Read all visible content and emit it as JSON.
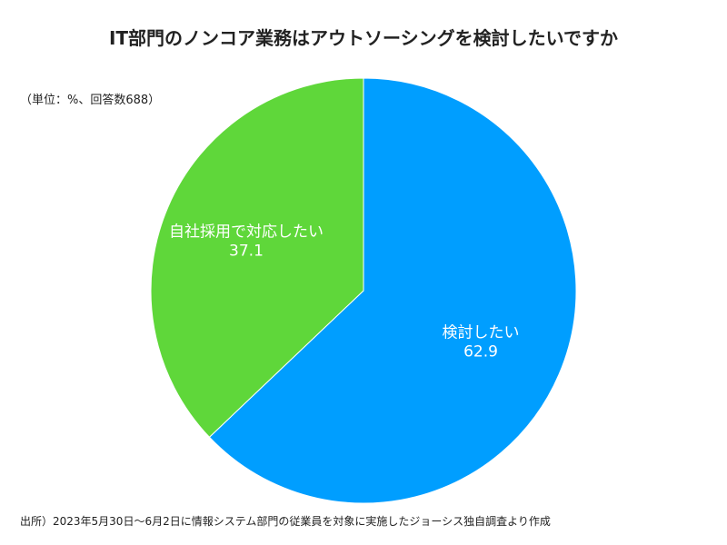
{
  "chart_data": {
    "type": "pie",
    "title": "IT部門のノンコア業務はアウトソーシングを検討したいですか",
    "unit_note": "（単位：%、回答数688）",
    "slices": [
      {
        "label": "検討したい",
        "value": 62.9,
        "value_label": "62.9",
        "color": "#009eff"
      },
      {
        "label": "自社採用で対応したい",
        "value": 37.1,
        "value_label": "37.1",
        "color": "#5fd73a"
      }
    ],
    "start_angle_deg": 0,
    "direction": "clockwise",
    "legend": "none",
    "source": "出所）2023年5月30日〜6月2日に情報システム部門の従業員を対象に実施したジョーシス独自調査より作成"
  }
}
